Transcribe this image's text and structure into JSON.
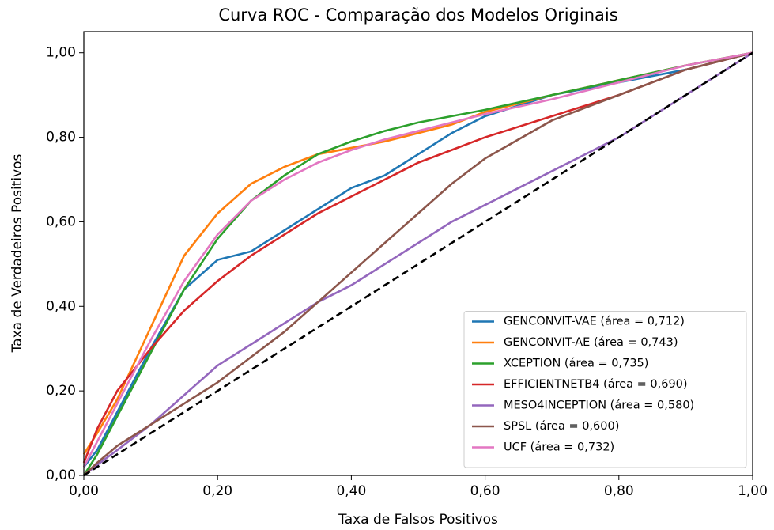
{
  "chart_data": {
    "type": "line",
    "title": "Curva ROC - Comparação dos Modelos Originais",
    "x_label": "Taxa de Falsos Positivos",
    "y_label": "Taxa de Verdadeiros Positivos",
    "x": [
      0,
      0.02,
      0.05,
      0.1,
      0.15,
      0.2,
      0.25,
      0.3,
      0.35,
      0.4,
      0.45,
      0.5,
      0.55,
      0.6,
      0.7,
      0.8,
      0.9,
      1.0
    ],
    "series": [
      {
        "name": "GENCONVIT-VAE (área = 0,712)",
        "color": "#1f77b4",
        "values": [
          0.02,
          0.06,
          0.15,
          0.3,
          0.44,
          0.51,
          0.53,
          0.58,
          0.63,
          0.68,
          0.71,
          0.76,
          0.81,
          0.85,
          0.9,
          0.93,
          0.96,
          1.0
        ]
      },
      {
        "name": "GENCONVIT-AE (área = 0,743)",
        "color": "#ff7f0e",
        "values": [
          0.05,
          0.1,
          0.18,
          0.35,
          0.52,
          0.62,
          0.69,
          0.73,
          0.76,
          0.775,
          0.79,
          0.81,
          0.83,
          0.86,
          0.9,
          0.935,
          0.97,
          1.0
        ]
      },
      {
        "name": "XCEPTION (área = 0,735)",
        "color": "#2ca02c",
        "values": [
          0,
          0.05,
          0.14,
          0.29,
          0.44,
          0.56,
          0.65,
          0.71,
          0.76,
          0.79,
          0.815,
          0.835,
          0.85,
          0.865,
          0.9,
          0.935,
          0.97,
          1.0
        ]
      },
      {
        "name": "EFFICIENTNETB4 (área = 0,690)",
        "color": "#d62728",
        "values": [
          0.03,
          0.11,
          0.2,
          0.3,
          0.39,
          0.46,
          0.52,
          0.57,
          0.62,
          0.66,
          0.7,
          0.74,
          0.77,
          0.8,
          0.85,
          0.9,
          0.96,
          1.0
        ]
      },
      {
        "name": "MESO4INCEPTION (área = 0,580)",
        "color": "#9467bd",
        "values": [
          0,
          0.025,
          0.06,
          0.12,
          0.19,
          0.26,
          0.31,
          0.36,
          0.41,
          0.45,
          0.5,
          0.55,
          0.6,
          0.64,
          0.72,
          0.8,
          0.9,
          1.0
        ]
      },
      {
        "name": "SPSL (área = 0,600)",
        "color": "#8c564b",
        "values": [
          0,
          0.03,
          0.07,
          0.12,
          0.17,
          0.22,
          0.28,
          0.34,
          0.41,
          0.48,
          0.55,
          0.62,
          0.69,
          0.75,
          0.84,
          0.9,
          0.96,
          1.0
        ]
      },
      {
        "name": "UCF (área = 0,732)",
        "color": "#e377c2",
        "values": [
          0.02,
          0.08,
          0.17,
          0.32,
          0.46,
          0.57,
          0.65,
          0.7,
          0.74,
          0.77,
          0.795,
          0.815,
          0.835,
          0.855,
          0.89,
          0.93,
          0.97,
          1.0
        ]
      }
    ],
    "reference_line": {
      "x": [
        0,
        1
      ],
      "y": [
        0,
        1
      ],
      "color": "#000000",
      "style": "dashed"
    },
    "xlim": [
      0,
      1
    ],
    "ylim": [
      0,
      1.05
    ],
    "xticks": [
      {
        "value": 0,
        "label": "0,00"
      },
      {
        "value": 0.2,
        "label": "0,20"
      },
      {
        "value": 0.4,
        "label": "0,40"
      },
      {
        "value": 0.6,
        "label": "0,60"
      },
      {
        "value": 0.8,
        "label": "0,80"
      },
      {
        "value": 1,
        "label": "1,00"
      }
    ],
    "yticks": [
      {
        "value": 0,
        "label": "0,00"
      },
      {
        "value": 0.2,
        "label": "0,20"
      },
      {
        "value": 0.4,
        "label": "0,40"
      },
      {
        "value": 0.6,
        "label": "0,60"
      },
      {
        "value": 0.8,
        "label": "0,80"
      },
      {
        "value": 1,
        "label": "1,00"
      }
    ],
    "legend": "lower right",
    "grid": false
  }
}
